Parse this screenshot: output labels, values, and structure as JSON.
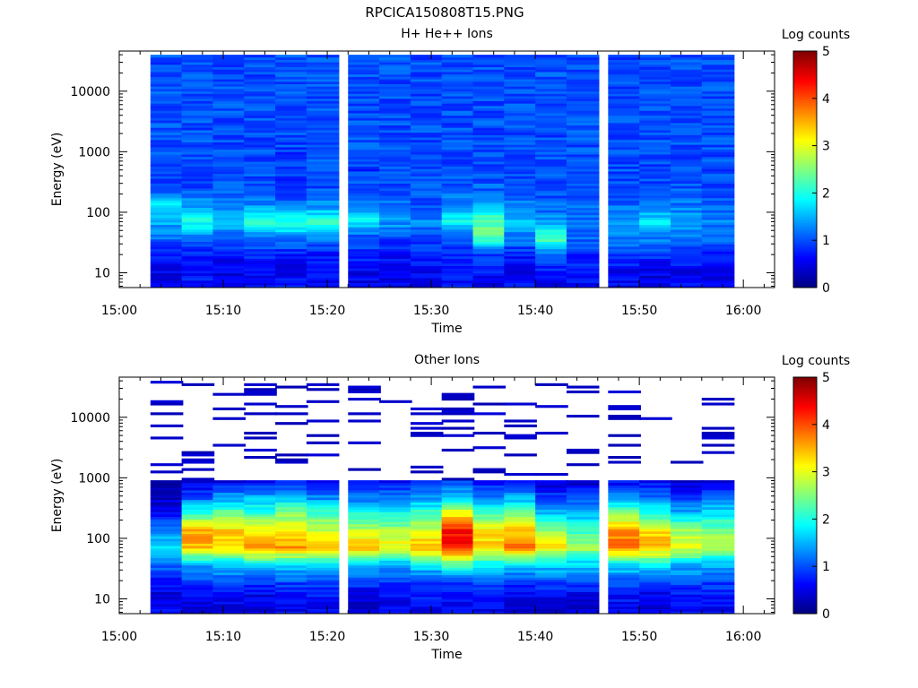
{
  "figure_title": "RPCICA150808T15.PNG",
  "chart_data": [
    {
      "type": "heatmap",
      "title": "H+ He++ Ions",
      "xlabel": "Time",
      "ylabel": "Energy (eV)",
      "y_scale": "log",
      "x_tick_labels": [
        "15:00",
        "15:10",
        "15:20",
        "15:30",
        "15:40",
        "15:50",
        "16:00"
      ],
      "y_tick_labels": [
        "10",
        "100",
        "1000",
        "10000"
      ],
      "xlim": [
        "15:00",
        "16:03"
      ],
      "ylim": [
        5.7,
        46000
      ],
      "colorbar": {
        "label": "Log counts",
        "range": [
          0,
          5
        ],
        "tick_labels": [
          "0",
          "1",
          "2",
          "3",
          "4",
          "5"
        ],
        "colormap": "jet"
      },
      "time_bins": [
        "15:03",
        "15:06",
        "15:09",
        "15:12",
        "15:15",
        "15:18",
        "15:22",
        "15:25",
        "15:28",
        "15:31",
        "15:34",
        "15:37",
        "15:40",
        "15:43",
        "15:47",
        "15:50",
        "15:53",
        "15:56"
      ],
      "energy_range_eV": [
        5.7,
        40000
      ],
      "energy_bins": 96,
      "profiles": [
        [
          0.7,
          0.5,
          0.7,
          1.2,
          1.5,
          1.7,
          1.0,
          0.9,
          1.0,
          1.0,
          1.0,
          1.0,
          1.0,
          1.0,
          1.0
        ],
        [
          0.8,
          0.6,
          0.7,
          1.3,
          2.0,
          1.4,
          1.0,
          0.9,
          1.0,
          1.0,
          1.0,
          1.0,
          1.0,
          1.0,
          1.0
        ],
        [
          0.6,
          0.5,
          0.6,
          1.2,
          1.5,
          1.3,
          1.0,
          1.0,
          1.0,
          1.0,
          1.0,
          1.0,
          1.0,
          1.0,
          1.0
        ],
        [
          0.6,
          0.6,
          0.8,
          1.3,
          2.1,
          1.3,
          1.0,
          1.0,
          1.0,
          1.0,
          1.0,
          1.0,
          1.0,
          1.0,
          1.0
        ],
        [
          0.7,
          0.6,
          0.7,
          1.3,
          2.1,
          1.2,
          0.9,
          0.9,
          0.9,
          1.0,
          1.0,
          1.0,
          1.0,
          1.0,
          1.0
        ],
        [
          0.6,
          0.6,
          0.7,
          1.3,
          2.1,
          1.3,
          1.0,
          1.0,
          1.0,
          1.0,
          1.0,
          1.0,
          1.0,
          1.0,
          1.0
        ],
        [
          0.5,
          0.6,
          0.8,
          1.0,
          1.9,
          1.2,
          1.0,
          0.9,
          1.0,
          1.0,
          1.0,
          1.0,
          1.0,
          1.0,
          1.0
        ],
        [
          0.5,
          0.5,
          0.7,
          1.0,
          1.4,
          1.2,
          1.0,
          1.0,
          1.0,
          1.0,
          1.0,
          1.0,
          1.0,
          1.0,
          1.0
        ],
        [
          0.6,
          0.6,
          0.8,
          0.9,
          1.3,
          1.0,
          1.0,
          1.0,
          1.0,
          1.0,
          1.0,
          1.0,
          1.0,
          1.0,
          1.0
        ],
        [
          0.7,
          0.7,
          0.8,
          1.0,
          1.9,
          1.3,
          1.0,
          1.0,
          1.0,
          1.0,
          1.0,
          1.0,
          1.0,
          1.0,
          1.0
        ],
        [
          0.4,
          0.7,
          0.9,
          2.3,
          2.4,
          1.5,
          1.1,
          1.0,
          1.0,
          1.0,
          1.0,
          1.0,
          1.0,
          1.0,
          1.0
        ],
        [
          0.6,
          0.6,
          0.8,
          1.2,
          1.6,
          1.2,
          1.0,
          1.0,
          1.0,
          1.0,
          1.0,
          1.0,
          1.0,
          1.0,
          1.0
        ],
        [
          0.5,
          0.7,
          1.1,
          2.3,
          1.4,
          1.1,
          1.0,
          1.0,
          1.0,
          1.0,
          1.0,
          1.0,
          1.0,
          1.0,
          1.0
        ],
        [
          0.6,
          0.7,
          0.8,
          1.2,
          1.2,
          1.1,
          1.0,
          1.0,
          1.0,
          1.0,
          1.0,
          1.0,
          1.0,
          1.0,
          1.0
        ],
        [
          0.6,
          0.6,
          0.9,
          1.3,
          1.4,
          1.1,
          1.0,
          1.0,
          1.0,
          1.0,
          1.0,
          1.0,
          1.0,
          1.0,
          1.0
        ],
        [
          0.5,
          0.5,
          0.9,
          1.3,
          1.8,
          1.2,
          1.0,
          1.0,
          1.0,
          1.0,
          1.0,
          1.0,
          1.0,
          1.0,
          1.0
        ],
        [
          0.6,
          0.6,
          0.8,
          1.2,
          1.5,
          1.2,
          1.0,
          1.0,
          1.0,
          1.0,
          1.0,
          1.0,
          1.0,
          1.0,
          1.0
        ],
        [
          0.5,
          0.5,
          0.8,
          1.1,
          1.3,
          1.1,
          1.0,
          1.0,
          1.0,
          1.0,
          1.0,
          1.0,
          1.0,
          1.0,
          1.0
        ]
      ]
    },
    {
      "type": "heatmap",
      "title": "Other Ions",
      "xlabel": "Time",
      "ylabel": "Energy (eV)",
      "y_scale": "log",
      "x_tick_labels": [
        "15:00",
        "15:10",
        "15:20",
        "15:30",
        "15:40",
        "15:50",
        "16:00"
      ],
      "y_tick_labels": [
        "10",
        "100",
        "1000",
        "10000"
      ],
      "xlim": [
        "15:00",
        "16:03"
      ],
      "ylim": [
        5.7,
        46000
      ],
      "colorbar": {
        "label": "Log counts",
        "range": [
          0,
          5
        ],
        "tick_labels": [
          "0",
          "1",
          "2",
          "3",
          "4",
          "5"
        ],
        "colormap": "jet"
      },
      "time_bins": [
        "15:03",
        "15:06",
        "15:09",
        "15:12",
        "15:15",
        "15:18",
        "15:22",
        "15:25",
        "15:28",
        "15:31",
        "15:34",
        "15:37",
        "15:40",
        "15:43",
        "15:47",
        "15:50",
        "15:53",
        "15:56"
      ],
      "energy_range_eV": [
        5.7,
        40000
      ],
      "energy_bins": 96,
      "profiles": [
        [
          0.6,
          0.5,
          0.6,
          1.2,
          1.8,
          1.3,
          0.7,
          0.3,
          0.2,
          0.0,
          0.0,
          0.0,
          0.0,
          0.0,
          0.0
        ],
        [
          0.5,
          0.6,
          1.0,
          1.5,
          3.4,
          3.6,
          2.2,
          1.0,
          0.4,
          0.3,
          0.3,
          0.0,
          0.3,
          0.3,
          0.3
        ],
        [
          0.4,
          0.6,
          1.0,
          1.6,
          3.3,
          3.3,
          2.5,
          1.4,
          0.5,
          0.3,
          0.3,
          0.0,
          0.3,
          0.3,
          0.3
        ],
        [
          0.5,
          0.5,
          1.0,
          1.8,
          3.6,
          3.1,
          2.2,
          1.5,
          0.5,
          0.3,
          0.3,
          0.3,
          0.3,
          0.3,
          0.3
        ],
        [
          0.6,
          0.6,
          1.0,
          1.8,
          3.6,
          3.3,
          2.5,
          1.6,
          0.6,
          0.3,
          0.3,
          0.0,
          0.3,
          0.3,
          0.3
        ],
        [
          0.5,
          0.7,
          1.1,
          1.7,
          3.4,
          2.9,
          2.3,
          1.3,
          0.6,
          0.3,
          0.3,
          0.3,
          0.3,
          0.3,
          0.3
        ],
        [
          0.5,
          0.4,
          1.0,
          1.7,
          3.5,
          2.8,
          2.0,
          1.2,
          0.6,
          0.3,
          0.3,
          0.0,
          0.3,
          0.3,
          0.3
        ],
        [
          0.6,
          0.6,
          0.9,
          1.6,
          3.1,
          2.7,
          2.0,
          1.3,
          0.6,
          0.3,
          0.3,
          0.3,
          0.3,
          0.3,
          0.3
        ],
        [
          0.5,
          0.7,
          1.0,
          1.8,
          3.6,
          2.9,
          2.2,
          1.4,
          0.6,
          0.3,
          0.3,
          0.3,
          0.3,
          0.3,
          0.3
        ],
        [
          0.6,
          0.6,
          1.0,
          2.4,
          4.3,
          4.3,
          3.2,
          1.6,
          0.9,
          0.4,
          0.3,
          0.3,
          0.3,
          0.3,
          0.3
        ],
        [
          0.6,
          0.6,
          1.0,
          1.9,
          3.3,
          3.2,
          2.3,
          1.3,
          0.6,
          0.3,
          0.3,
          0.0,
          0.3,
          0.3,
          0.3
        ],
        [
          0.5,
          0.5,
          1.0,
          1.8,
          3.9,
          3.4,
          2.4,
          1.5,
          0.7,
          0.3,
          0.3,
          0.3,
          0.3,
          0.3,
          0.3
        ],
        [
          0.5,
          0.5,
          1.0,
          1.8,
          3.2,
          2.5,
          1.6,
          0.9,
          0.4,
          0.3,
          0.3,
          0.3,
          0.3,
          0.3,
          0.3
        ],
        [
          0.4,
          0.5,
          1.0,
          1.7,
          2.7,
          2.2,
          1.5,
          0.9,
          0.4,
          0.3,
          0.3,
          0.0,
          0.3,
          0.3,
          0.3
        ],
        [
          0.6,
          0.7,
          1.0,
          1.9,
          3.9,
          3.6,
          2.5,
          1.3,
          0.6,
          0.3,
          0.3,
          0.3,
          0.3,
          0.3,
          0.3
        ],
        [
          0.5,
          0.5,
          1.0,
          1.9,
          3.5,
          3.2,
          2.0,
          1.2,
          0.6,
          0.3,
          0.3,
          0.0,
          0.3,
          0.3,
          0.3
        ],
        [
          0.6,
          0.6,
          1.0,
          1.6,
          3.1,
          2.6,
          1.6,
          0.8,
          0.4,
          0.3,
          0.3,
          0.3,
          0.3,
          0.3,
          0.3
        ],
        [
          0.6,
          0.6,
          1.0,
          1.5,
          2.8,
          2.5,
          1.8,
          1.1,
          0.5,
          0.3,
          0.3,
          0.3,
          0.3,
          0.3,
          0.3
        ]
      ]
    }
  ]
}
